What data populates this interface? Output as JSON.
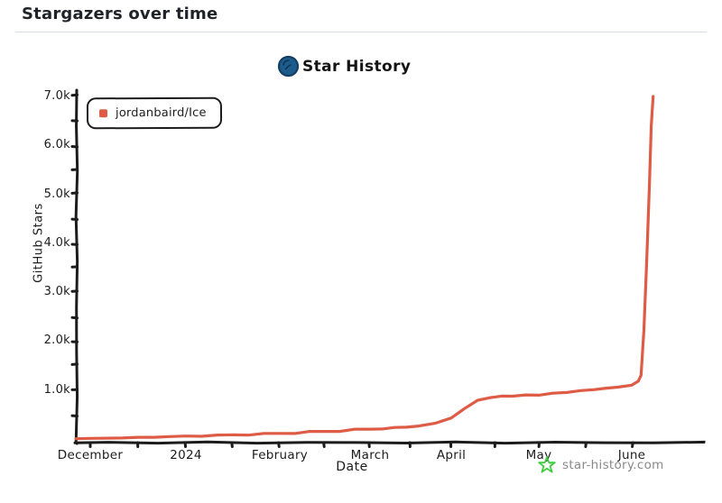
{
  "header": {
    "title": "Stargazers over time"
  },
  "brand": {
    "title": "Star History",
    "logo_color": "#1e5b8d"
  },
  "legend": {
    "series_label": "jordanbaird/Ice",
    "marker_color": "#de5b46"
  },
  "watermark": {
    "text": "star-history.com",
    "icon_color": "#3fce3f",
    "text_color": "#8a8a8a"
  },
  "colors": {
    "line": "#de5b46",
    "axis": "#1c1c1c",
    "header_text": "#1f2328",
    "divider": "#d8dee4"
  },
  "chart_data": {
    "type": "line",
    "title": "Star History",
    "xlabel": "Date",
    "ylabel": "GitHub Stars",
    "x_tick_labels": [
      "December",
      "2024",
      "February",
      "March",
      "April",
      "May",
      "June"
    ],
    "x_tick_meaning": "first day of each month, Dec 2023 - Jun 2024",
    "y_tick_labels": [
      "1.0k",
      "2.0k",
      "3.0k",
      "4.0k",
      "5.0k",
      "6.0k",
      "7.0k"
    ],
    "y_tick_values": [
      1000,
      2000,
      3000,
      4000,
      5000,
      6000,
      7000
    ],
    "ylim": [
      0,
      7000
    ],
    "xlim_months": [
      -0.15,
      6.6
    ],
    "grid": false,
    "legend_position": "top-left",
    "series": [
      {
        "name": "jordanbaird/Ice",
        "color": "#de5b46",
        "points_unit": "[months since 2023-12-01, github stars]",
        "points": [
          [
            -0.15,
            5
          ],
          [
            0,
            12
          ],
          [
            0.5,
            35
          ],
          [
            1,
            60
          ],
          [
            1.5,
            85
          ],
          [
            2,
            115
          ],
          [
            2.5,
            155
          ],
          [
            3,
            200
          ],
          [
            3.3,
            235
          ],
          [
            3.6,
            265
          ],
          [
            3.8,
            320
          ],
          [
            4,
            430
          ],
          [
            4.15,
            620
          ],
          [
            4.3,
            790
          ],
          [
            4.45,
            845
          ],
          [
            4.7,
            875
          ],
          [
            5,
            895
          ],
          [
            5.3,
            950
          ],
          [
            5.6,
            1010
          ],
          [
            5.85,
            1060
          ],
          [
            6,
            1100
          ],
          [
            6.07,
            1180
          ],
          [
            6.1,
            1300
          ],
          [
            6.13,
            2200
          ],
          [
            6.16,
            3600
          ],
          [
            6.19,
            5200
          ],
          [
            6.21,
            6400
          ],
          [
            6.23,
            7000
          ]
        ]
      }
    ]
  }
}
